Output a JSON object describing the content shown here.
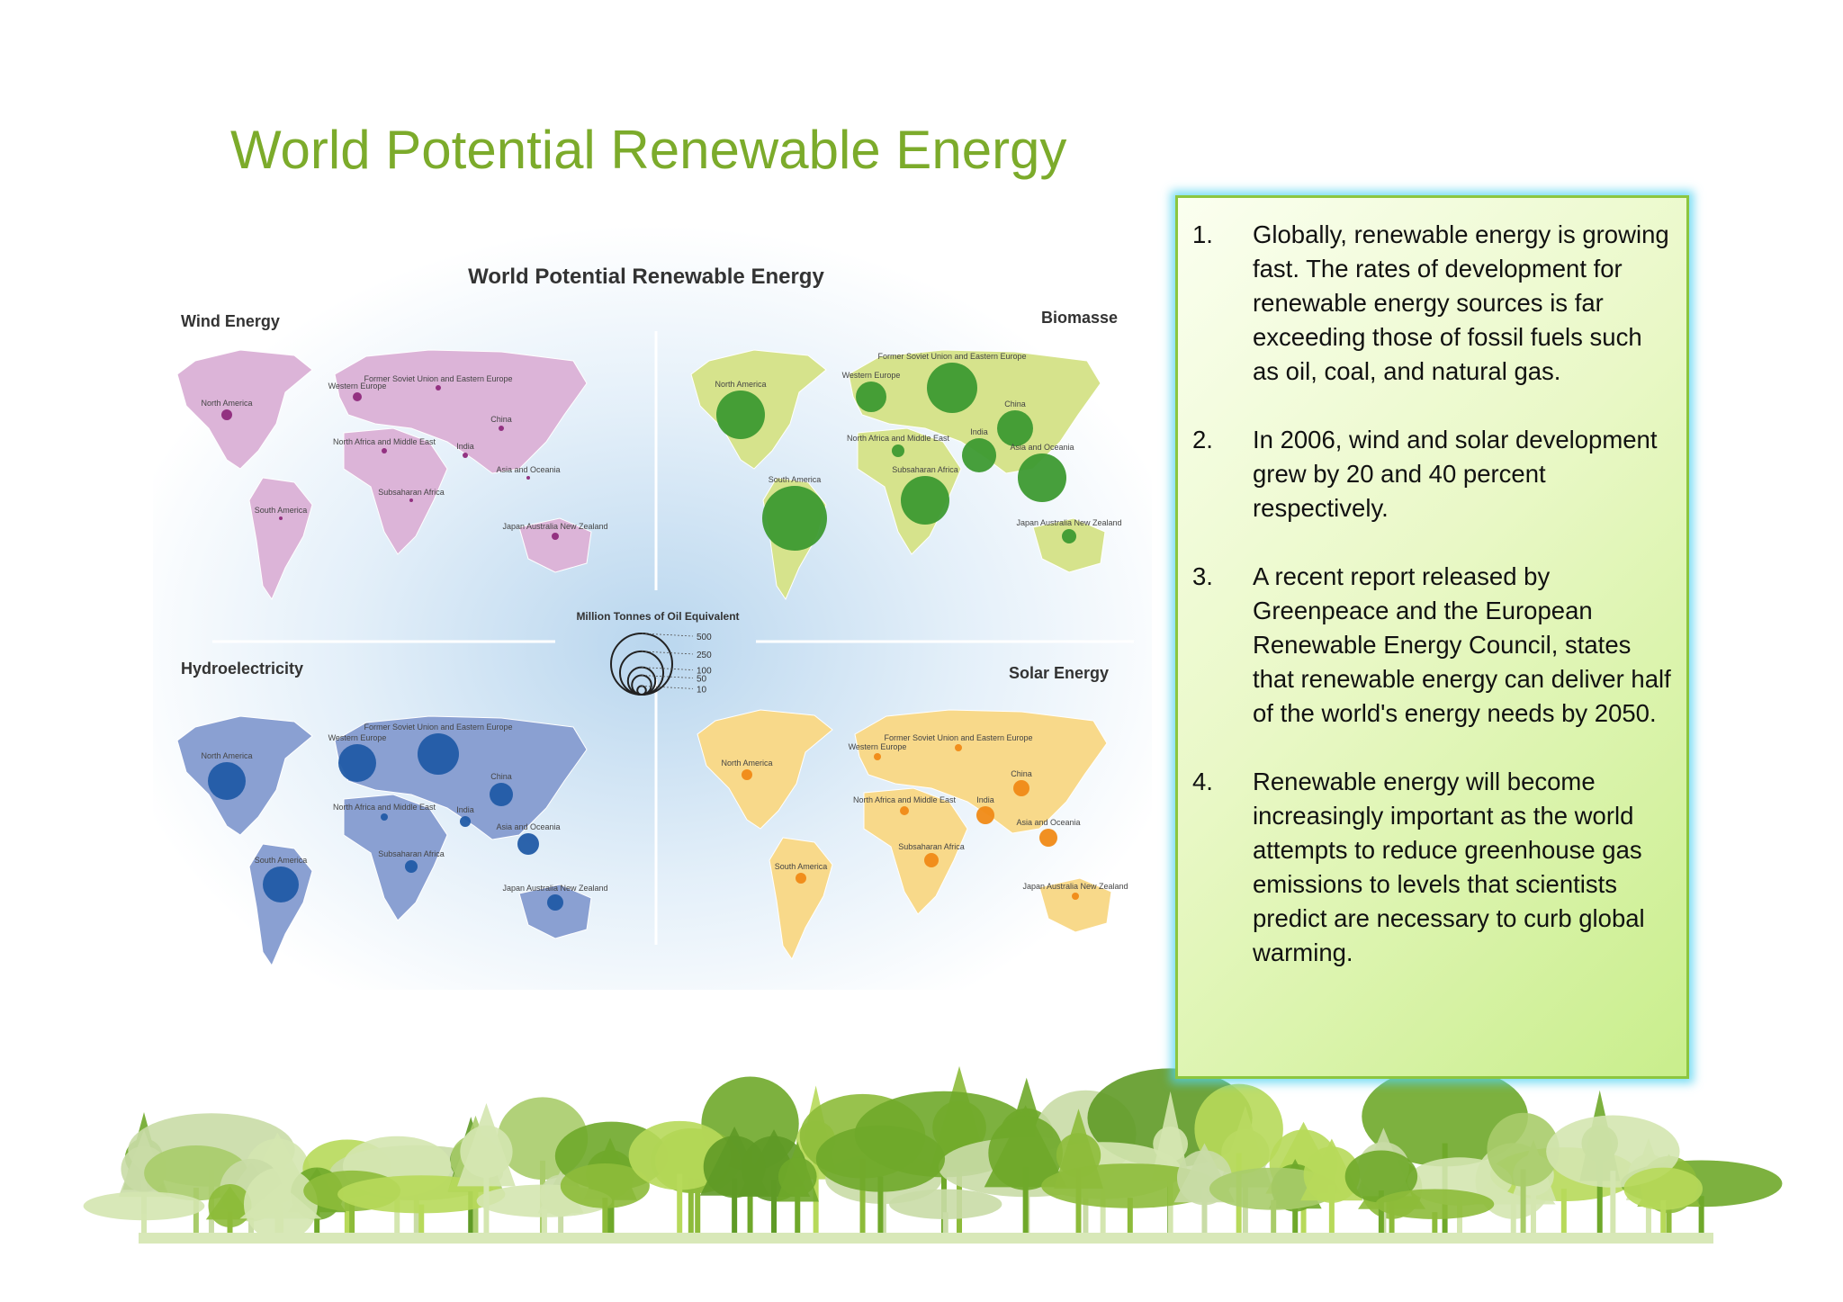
{
  "header": {
    "title": "World Potential Renewable Energy"
  },
  "figure": {
    "title": "World Potential Renewable Energy",
    "panels": [
      "Wind Energy",
      "Biomasse",
      "Hydroelectricity",
      "Solar Energy"
    ],
    "regions": [
      "North America",
      "Western Europe",
      "Former Soviet Union and Eastern Europe",
      "China",
      "North Africa and Middle East",
      "India",
      "Asia and Oceania",
      "South America",
      "Subsaharan Africa",
      "Japan Australia New Zealand"
    ],
    "legend": {
      "title": "Million Tonnes of Oil Equivalent",
      "values": [
        500,
        250,
        100,
        50,
        10
      ]
    }
  },
  "list": {
    "items": [
      {
        "number": "1.",
        "text": "Globally, renewable energy is growing fast. The rates of development for renewable energy sources is far exceeding those of fossil fuels such as oil, coal, and natural gas."
      },
      {
        "number": "2.",
        "text": " In 2006, wind and solar development grew by 20 and 40 percent respectively."
      },
      {
        "number": "3.",
        "text": "A recent report released by Greenpeace and the European Renewable Energy Council, states that renewable energy can deliver half of the world's energy needs by 2050."
      },
      {
        "number": "4.",
        "text": "Renewable energy will become increasingly important as the world attempts to reduce greenhouse gas emissions to levels that scientists predict are necessary to curb global warming."
      }
    ]
  }
}
